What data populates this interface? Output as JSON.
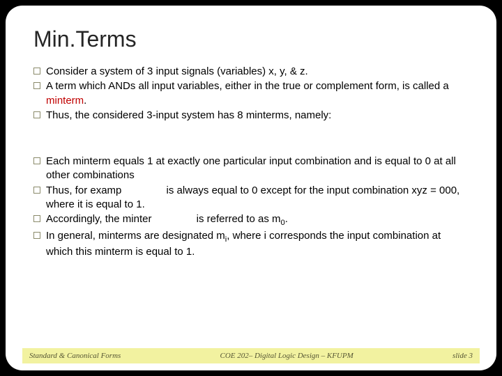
{
  "slide": {
    "title": "Min.Terms",
    "bullets": [
      {
        "html": "Consider a system of 3 input signals (variables) x, y, & z."
      },
      {
        "html": "A term which ANDs all input variables, either in the true or complement form, is called a <span class='minterm-word'>minterm</span>."
      },
      {
        "html": "Thus, the considered 3-input system has 8 minterms, namely:"
      },
      {
        "html": "Each minterm equals 1 at exactly one particular input combination and is equal to 0 at all other combinations"
      },
      {
        "html": "Thus, for examp<span class='inline-gap'></span> is always equal to 0 except for the input combination xyz = 000, where it is equal to 1."
      },
      {
        "html": "Accordingly, the minter<span class='inline-gap'></span> is referred to as m<span class='sub'>0</span>."
      },
      {
        "html": "In general, minterms are designated m<span class='sub'>i</span>, where i corresponds the input combination at which this minterm is equal to 1."
      }
    ],
    "footer": {
      "left": "Standard & Canonical Forms",
      "center": "COE 202– Digital Logic Design – KFUPM",
      "right": "slide 3"
    },
    "colors": {
      "background": "#000000",
      "slide_bg": "#ffffff",
      "title_color": "#262626",
      "text_color": "#000000",
      "accent_red": "#c00000",
      "footer_bg": "#f2f2a0",
      "footer_text": "#555533",
      "bullet_border": "#8a8a6a"
    }
  }
}
